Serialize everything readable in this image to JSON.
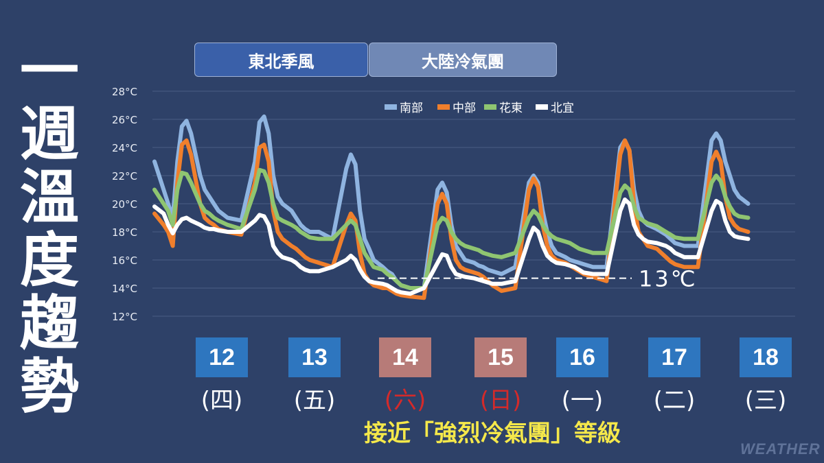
{
  "title": "一週溫度趨勢",
  "phases": [
    {
      "label": "東北季風",
      "color": "#3a60a9"
    },
    {
      "label": "大陸冷氣團",
      "color": "#7088b5"
    }
  ],
  "days": [
    {
      "date": "12",
      "weekday": "(四)",
      "weekend": false
    },
    {
      "date": "13",
      "weekday": "(五)",
      "weekend": false
    },
    {
      "date": "14",
      "weekday": "(六)",
      "weekend": true
    },
    {
      "date": "15",
      "weekday": "(日)",
      "weekend": true
    },
    {
      "date": "16",
      "weekday": "(一)",
      "weekend": false
    },
    {
      "date": "17",
      "weekday": "(二)",
      "weekend": false
    },
    {
      "date": "18",
      "weekday": "(三)",
      "weekend": false
    }
  ],
  "colors": {
    "weekday_box": "#2e76bf",
    "weekend_box": "#b77b78",
    "weekday_text": "#ffffff",
    "weekend_text": "#d42a2a"
  },
  "footnote": "接近「強烈冷氣團」等級",
  "watermark": "WEATHER",
  "chart_data": {
    "type": "line",
    "y_unit": "°C",
    "ylim": [
      12,
      28
    ],
    "yticks": [
      "12°C",
      "14°C",
      "16°C",
      "18°C",
      "20°C",
      "22°C",
      "24°C",
      "26°C",
      "28°C"
    ],
    "grid": true,
    "legend_position": "top-center",
    "x": [
      0,
      0.1,
      0.15,
      0.2,
      0.25,
      0.3,
      0.35,
      0.4,
      0.5,
      0.55,
      0.6,
      0.65,
      0.7,
      0.8,
      0.95,
      1.1,
      1.15,
      1.2,
      1.25,
      1.3,
      1.35,
      1.4,
      1.5,
      1.55,
      1.6,
      1.65,
      1.7,
      1.8,
      1.95,
      2.1,
      2.15,
      2.2,
      2.25,
      2.3,
      2.35,
      2.4,
      2.5,
      2.55,
      2.6,
      2.65,
      2.7,
      2.8,
      2.95,
      3.1,
      3.15,
      3.2,
      3.25,
      3.3,
      3.35,
      3.4,
      3.5,
      3.55,
      3.6,
      3.65,
      3.7,
      3.8,
      3.95,
      4.1,
      4.15,
      4.2,
      4.25,
      4.3,
      4.35,
      4.4,
      4.5,
      4.55,
      4.6,
      4.65,
      4.7,
      4.8,
      4.95,
      5.1,
      5.15,
      5.2,
      5.25,
      5.3,
      5.35,
      5.4,
      5.5,
      5.55,
      5.6,
      5.65,
      5.7,
      5.8,
      5.95,
      6.1,
      6.15,
      6.2,
      6.25,
      6.3,
      6.35,
      6.4,
      6.5
    ],
    "series": [
      {
        "name": "南部",
        "color": "#8fb4e0",
        "values": [
          23.0,
          21.0,
          20.0,
          19.0,
          23.0,
          25.5,
          25.9,
          25.0,
          22.0,
          21.0,
          20.5,
          20.0,
          19.5,
          19.0,
          18.8,
          23.0,
          25.8,
          26.2,
          25.0,
          22.0,
          20.5,
          20.0,
          19.5,
          19.0,
          18.5,
          18.2,
          18.0,
          18.0,
          17.5,
          22.5,
          23.5,
          22.8,
          19.5,
          17.5,
          16.8,
          16.0,
          15.5,
          15.2,
          15.0,
          14.5,
          14.2,
          14.0,
          14.0,
          21.0,
          21.5,
          20.8,
          18.5,
          17.0,
          16.5,
          16.0,
          15.8,
          15.6,
          15.5,
          15.3,
          15.2,
          15.0,
          15.5,
          21.5,
          22.0,
          21.5,
          19.5,
          18.0,
          17.0,
          16.5,
          16.2,
          16.0,
          15.9,
          15.8,
          15.7,
          15.5,
          15.5,
          24.0,
          24.5,
          23.8,
          21.0,
          19.5,
          18.8,
          18.5,
          18.2,
          18.0,
          17.8,
          17.5,
          17.2,
          17.0,
          17.0,
          24.5,
          25.0,
          24.5,
          23.0,
          22.0,
          21.0,
          20.5,
          20.0
        ]
      },
      {
        "name": "中部",
        "color": "#f07f2c",
        "values": [
          19.3,
          18.5,
          18.0,
          17.0,
          21.5,
          24.2,
          24.5,
          23.5,
          20.0,
          19.0,
          18.7,
          18.5,
          18.2,
          18.0,
          17.8,
          21.5,
          24.0,
          24.2,
          23.0,
          19.5,
          18.0,
          17.5,
          17.0,
          16.8,
          16.5,
          16.2,
          16.0,
          15.8,
          15.5,
          18.5,
          19.3,
          18.8,
          16.5,
          15.0,
          14.5,
          14.2,
          14.0,
          14.0,
          13.8,
          13.6,
          13.5,
          13.4,
          13.3,
          20.0,
          20.7,
          20.0,
          17.5,
          16.0,
          15.5,
          15.3,
          15.1,
          15.0,
          14.8,
          14.5,
          14.2,
          13.8,
          14.0,
          21.0,
          21.8,
          21.2,
          18.5,
          17.0,
          16.3,
          16.0,
          15.8,
          15.6,
          15.4,
          15.2,
          15.0,
          14.8,
          14.5,
          23.5,
          24.5,
          23.8,
          20.0,
          18.0,
          17.5,
          17.0,
          16.8,
          16.5,
          16.2,
          15.9,
          15.7,
          15.5,
          15.5,
          23.0,
          23.7,
          23.0,
          20.5,
          19.0,
          18.5,
          18.2,
          18.0
        ]
      },
      {
        "name": "花東",
        "color": "#8fc571",
        "values": [
          21.0,
          20.0,
          19.5,
          18.5,
          21.0,
          22.2,
          22.1,
          21.5,
          20.0,
          19.5,
          19.3,
          19.0,
          18.8,
          18.5,
          18.2,
          21.0,
          22.4,
          22.3,
          21.5,
          20.0,
          19.0,
          18.8,
          18.5,
          18.3,
          18.0,
          17.8,
          17.6,
          17.5,
          17.5,
          18.5,
          18.8,
          18.5,
          17.5,
          16.5,
          16.0,
          15.5,
          15.3,
          15.0,
          14.8,
          14.5,
          14.2,
          14.0,
          14.0,
          18.5,
          19.0,
          18.8,
          18.0,
          17.5,
          17.2,
          17.0,
          16.8,
          16.7,
          16.5,
          16.4,
          16.3,
          16.2,
          16.5,
          19.0,
          19.5,
          19.2,
          18.5,
          18.0,
          17.7,
          17.5,
          17.3,
          17.2,
          17.0,
          16.8,
          16.7,
          16.5,
          16.5,
          20.8,
          21.3,
          21.0,
          19.8,
          19.0,
          18.8,
          18.6,
          18.4,
          18.2,
          18.0,
          17.8,
          17.6,
          17.5,
          17.5,
          21.5,
          22.0,
          21.6,
          20.5,
          19.8,
          19.3,
          19.1,
          19.0
        ]
      },
      {
        "name": "北宜",
        "color": "#ffffff",
        "values": [
          19.8,
          19.3,
          18.5,
          17.9,
          18.5,
          18.9,
          19.0,
          18.8,
          18.5,
          18.3,
          18.2,
          18.2,
          18.1,
          18.0,
          18.0,
          18.8,
          19.2,
          19.1,
          18.5,
          17.0,
          16.5,
          16.2,
          16.0,
          15.8,
          15.5,
          15.3,
          15.2,
          15.2,
          15.5,
          16.0,
          16.3,
          16.0,
          15.3,
          14.8,
          14.5,
          14.4,
          14.3,
          14.2,
          14.0,
          13.8,
          13.7,
          13.6,
          14.0,
          15.8,
          16.4,
          16.3,
          15.5,
          15.0,
          14.9,
          14.8,
          14.7,
          14.6,
          14.5,
          14.4,
          14.3,
          14.3,
          14.5,
          17.5,
          18.3,
          18.0,
          17.0,
          16.3,
          16.0,
          15.8,
          15.7,
          15.6,
          15.5,
          15.3,
          15.1,
          15.0,
          15.0,
          19.5,
          20.3,
          20.0,
          18.5,
          17.8,
          17.5,
          17.3,
          17.2,
          17.1,
          17.0,
          16.8,
          16.5,
          16.2,
          16.2,
          19.5,
          20.2,
          20.0,
          18.8,
          18.0,
          17.7,
          17.6,
          17.5
        ]
      }
    ],
    "reference_line": {
      "value": 13,
      "label": "13℃",
      "style": "dashed"
    }
  }
}
